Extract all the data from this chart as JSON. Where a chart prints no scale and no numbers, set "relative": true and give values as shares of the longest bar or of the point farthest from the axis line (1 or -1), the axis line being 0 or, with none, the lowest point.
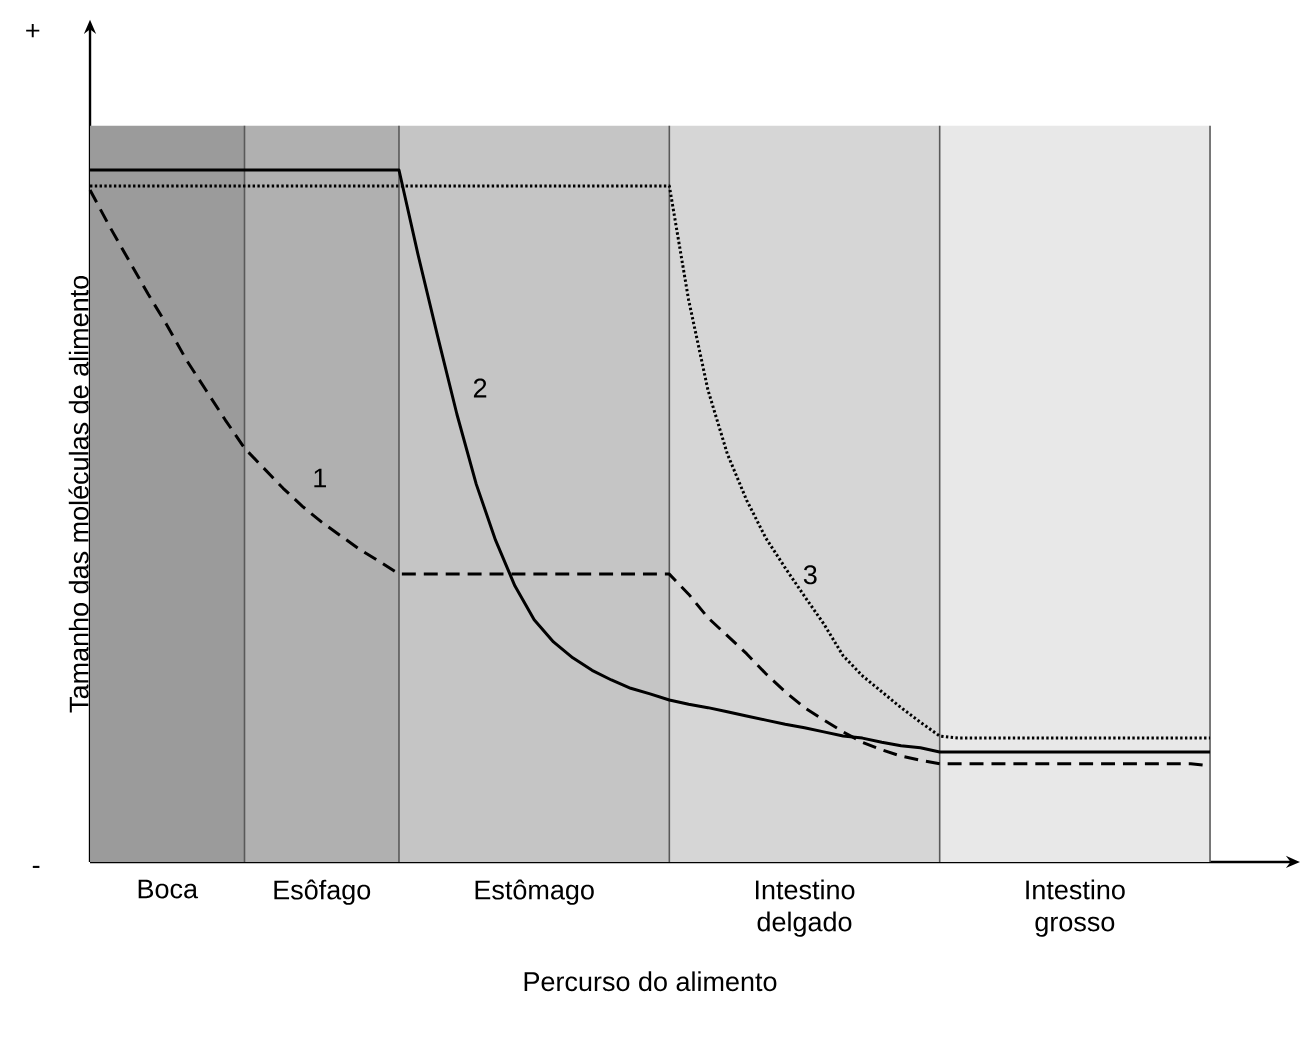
{
  "chart_data": {
    "type": "line",
    "relative": true,
    "xlabel": "Percurso do alimento",
    "ylabel": "Tamanho das moléculas de alimento",
    "annotations": [
      "+",
      "-"
    ],
    "tick_labels": "x",
    "grid": false,
    "marker": "none",
    "categories": [
      null,
      null,
      null,
      null,
      "Boca",
      null,
      null,
      null,
      null,
      null,
      null,
      null,
      "Esôfago",
      null,
      null,
      null,
      null,
      null,
      null,
      null,
      null,
      null,
      null,
      "Estômago",
      null,
      null,
      null,
      null,
      null,
      null,
      null,
      null,
      null,
      null,
      null,
      null,
      null,
      "Intestino delgado",
      null,
      null,
      null,
      null,
      null,
      null,
      null,
      null,
      null,
      null,
      null,
      null,
      null,
      "Intestino grosso",
      null,
      null,
      null,
      null,
      null,
      null,
      null
    ],
    "series": [
      {
        "name": "1",
        "color": "#000000",
        "line_style": "dashed",
        "values": [
          0.971,
          0.919,
          0.87,
          0.821,
          0.775,
          0.725,
          0.682,
          0.639,
          0.598,
          0.569,
          0.54,
          0.514,
          0.491,
          0.471,
          0.451,
          0.434,
          0.416,
          0.416,
          0.416,
          0.416,
          0.416,
          0.416,
          0.416,
          0.416,
          0.416,
          0.416,
          0.416,
          0.416,
          0.416,
          0.416,
          0.416,
          0.387,
          0.353,
          0.327,
          0.301,
          0.272,
          0.246,
          0.223,
          0.205,
          0.188,
          0.173,
          0.162,
          0.153,
          0.147,
          0.142,
          0.142,
          0.142,
          0.142,
          0.142,
          0.142,
          0.142,
          0.142,
          0.142,
          0.142,
          0.142,
          0.142,
          0.142,
          0.142,
          0.139
        ]
      },
      {
        "name": "2",
        "color": "#000000",
        "line_style": "solid",
        "values": [
          1,
          1,
          1,
          1,
          1,
          1,
          1,
          1,
          1,
          1,
          1,
          1,
          1,
          1,
          1,
          1,
          1,
          0.876,
          0.76,
          0.647,
          0.546,
          0.465,
          0.399,
          0.35,
          0.318,
          0.295,
          0.277,
          0.263,
          0.251,
          0.243,
          0.234,
          0.228,
          0.223,
          0.217,
          0.211,
          0.205,
          0.199,
          0.194,
          0.188,
          0.182,
          0.179,
          0.173,
          0.168,
          0.165,
          0.159,
          0.159,
          0.159,
          0.159,
          0.159,
          0.159,
          0.159,
          0.159,
          0.159,
          0.159,
          0.159,
          0.159,
          0.159,
          0.159,
          0.159
        ]
      },
      {
        "name": "3",
        "color": "#000000",
        "line_style": "dotted",
        "values": [
          0.977,
          0.977,
          0.977,
          0.977,
          0.977,
          0.977,
          0.977,
          0.977,
          0.977,
          0.977,
          0.977,
          0.977,
          0.977,
          0.977,
          0.977,
          0.977,
          0.977,
          0.977,
          0.977,
          0.977,
          0.977,
          0.977,
          0.977,
          0.977,
          0.977,
          0.977,
          0.977,
          0.977,
          0.977,
          0.977,
          0.977,
          0.812,
          0.682,
          0.59,
          0.523,
          0.468,
          0.425,
          0.384,
          0.344,
          0.298,
          0.269,
          0.246,
          0.223,
          0.202,
          0.182,
          0.179,
          0.179,
          0.179,
          0.179,
          0.179,
          0.179,
          0.179,
          0.179,
          0.179,
          0.179,
          0.179,
          0.179,
          0.179,
          0.179
        ]
      }
    ]
  }
}
